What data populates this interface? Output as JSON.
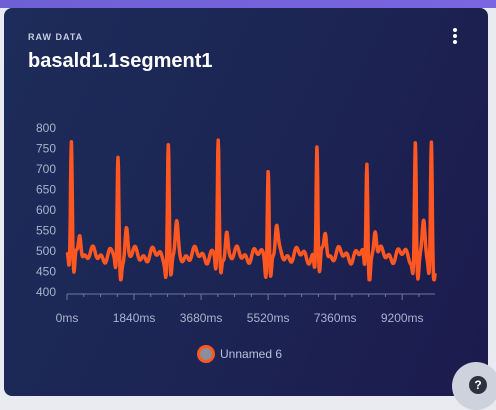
{
  "card": {
    "eyebrow": "RAW DATA",
    "title": "basald1.1segment1",
    "menu_icon": "more-vertical-icon"
  },
  "help": {
    "label": "?",
    "icon": "help-icon"
  },
  "chart_data": {
    "type": "line",
    "title": "",
    "xlabel": "",
    "ylabel": "",
    "xlim": [
      0,
      10100
    ],
    "ylim": [
      400,
      800
    ],
    "x_ticks": [
      0,
      1840,
      3680,
      5520,
      7360,
      9200
    ],
    "x_tick_labels": [
      "0ms",
      "1840ms",
      "3680ms",
      "5520ms",
      "7360ms",
      "9200ms"
    ],
    "y_ticks": [
      400,
      450,
      500,
      550,
      600,
      650,
      700,
      750,
      800
    ],
    "y_tick_labels": [
      "400",
      "450",
      "500",
      "550",
      "600",
      "650",
      "700",
      "750",
      "800"
    ],
    "grid": false,
    "legend_position": "bottom-center",
    "series": [
      {
        "name": "Unnamed 6",
        "color": "#ff5722",
        "peak_times_ms": [
          120,
          1400,
          2780,
          4150,
          5520,
          6860,
          8230,
          9560,
          10000
        ],
        "peak_values": [
          768,
          720,
          760,
          760,
          712,
          758,
          725,
          765,
          770
        ],
        "baseline": 490
      }
    ]
  }
}
